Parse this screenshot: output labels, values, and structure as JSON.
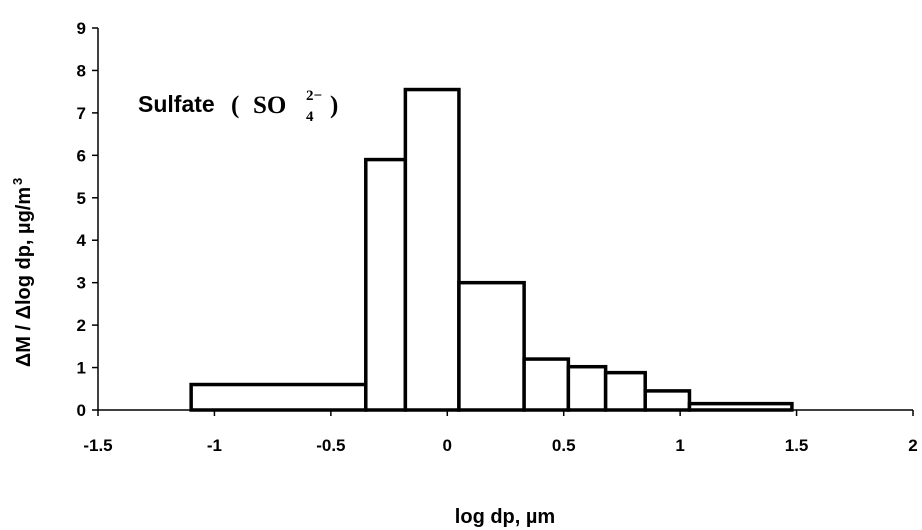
{
  "chart_data": {
    "type": "bar",
    "subtype": "histogram",
    "annotation": {
      "text": "Sulfate",
      "formula_base": "SO",
      "formula_subscript": "4",
      "formula_superscript": "2−",
      "open_paren": "(",
      "close_paren": ")"
    },
    "xlabel": "log dp, µm",
    "ylabel": "ΔM / Δlog dp, µg/m",
    "ylabel_superscript": "3",
    "xlim": [
      -1.5,
      2
    ],
    "ylim": [
      0,
      9
    ],
    "xticks": [
      -1.5,
      -1,
      -0.5,
      0,
      0.5,
      1,
      1.5,
      2
    ],
    "xtick_labels": [
      "-1.5",
      "-1",
      "-0.5",
      "0",
      "0.5",
      "1",
      "1.5",
      "2"
    ],
    "yticks": [
      0,
      1,
      2,
      3,
      4,
      5,
      6,
      7,
      8,
      9
    ],
    "ytick_labels": [
      "0",
      "1",
      "2",
      "3",
      "4",
      "5",
      "6",
      "7",
      "8",
      "9"
    ],
    "grid": false,
    "legend": "none",
    "bins": [
      {
        "x0": -1.1,
        "x1": -0.35,
        "value": 0.6
      },
      {
        "x0": -0.35,
        "x1": -0.18,
        "value": 5.9
      },
      {
        "x0": -0.18,
        "x1": 0.05,
        "value": 7.55
      },
      {
        "x0": 0.05,
        "x1": 0.33,
        "value": 3.0
      },
      {
        "x0": 0.33,
        "x1": 0.52,
        "value": 1.2
      },
      {
        "x0": 0.52,
        "x1": 0.68,
        "value": 1.02
      },
      {
        "x0": 0.68,
        "x1": 0.85,
        "value": 0.88
      },
      {
        "x0": 0.85,
        "x1": 1.04,
        "value": 0.45
      },
      {
        "x0": 1.04,
        "x1": 1.48,
        "value": 0.15
      }
    ],
    "colors": {
      "bar_fill": "#ffffff",
      "bar_stroke": "#000000",
      "axis": "#000000"
    }
  }
}
